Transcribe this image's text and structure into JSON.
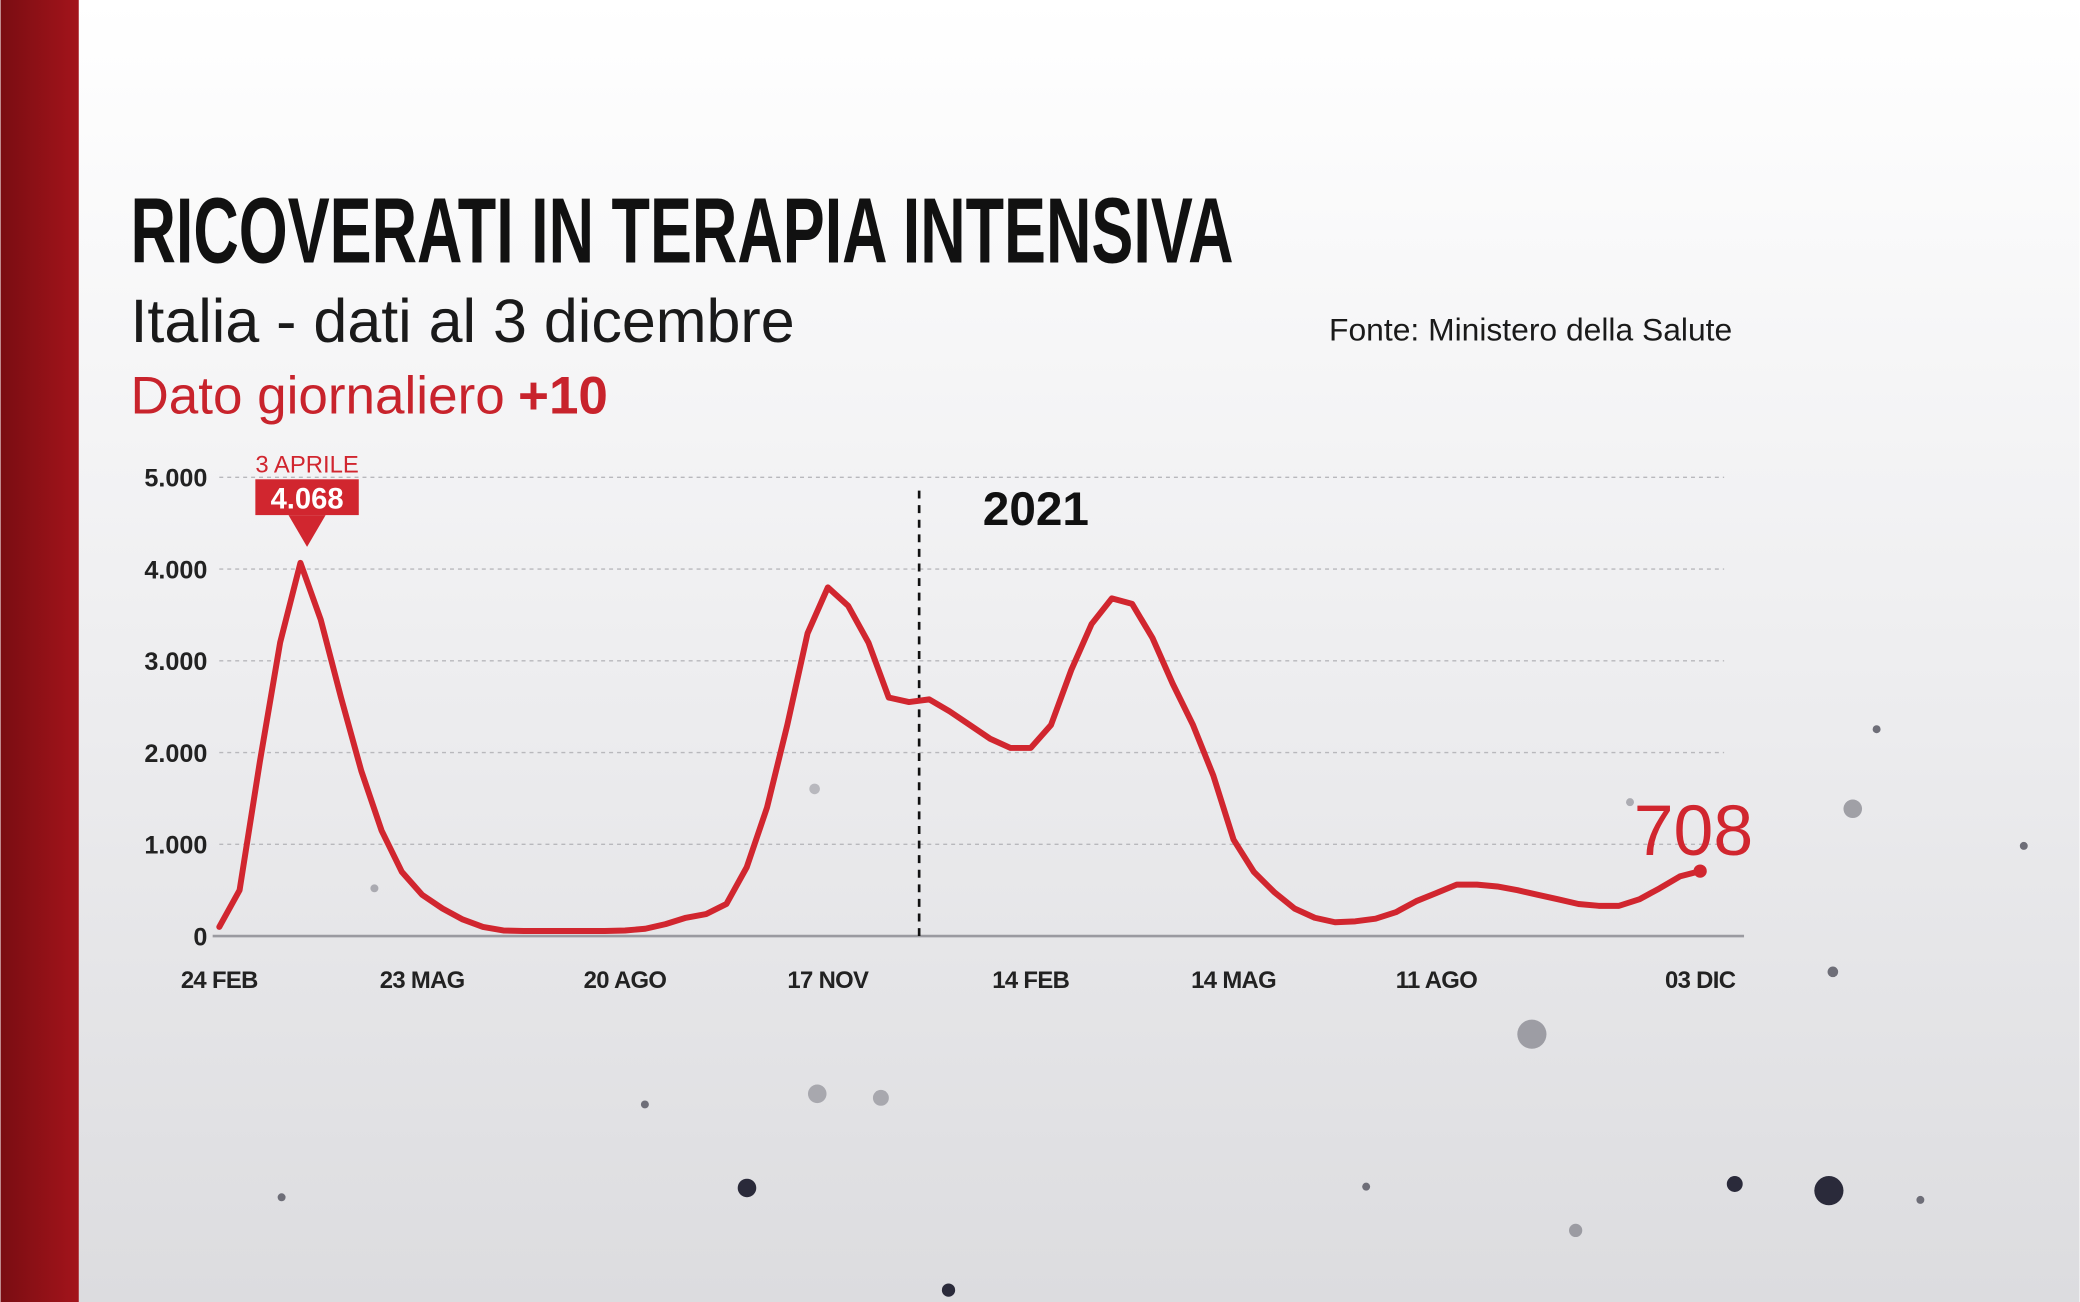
{
  "title": "RICOVERATI IN TERAPIA INTENSIVA",
  "subtitle": "Italia - dati al 3 dicembre",
  "source": "Fonte: Ministero della Salute",
  "daily_change": {
    "label": "Dato giornaliero",
    "value": "+10"
  },
  "chart_data": {
    "type": "line",
    "categories": [
      "24 FEB",
      null,
      null,
      null,
      null,
      null,
      null,
      null,
      null,
      null,
      "23 MAG",
      null,
      null,
      null,
      null,
      null,
      null,
      null,
      null,
      null,
      "20 AGO",
      null,
      null,
      null,
      null,
      null,
      null,
      null,
      null,
      null,
      "17 NOV",
      null,
      null,
      null,
      null,
      null,
      null,
      null,
      null,
      null,
      "14 FEB",
      null,
      null,
      null,
      null,
      null,
      null,
      null,
      null,
      null,
      "14 MAG",
      null,
      null,
      null,
      null,
      null,
      null,
      null,
      null,
      null,
      "11 AGO",
      null,
      null,
      null,
      null,
      null,
      null,
      null,
      null,
      null,
      null,
      null,
      null,
      "03 DIC"
    ],
    "series": [
      {
        "name": "Ricoverati in terapia intensiva",
        "color": "#d1262f",
        "values": [
          100,
          500,
          1900,
          3200,
          4068,
          3450,
          2600,
          1800,
          1150,
          700,
          450,
          300,
          180,
          100,
          60,
          55,
          55,
          55,
          55,
          55,
          60,
          80,
          130,
          200,
          240,
          350,
          750,
          1400,
          2300,
          3300,
          3800,
          3600,
          3200,
          2600,
          2550,
          2580,
          2450,
          2300,
          2150,
          2050,
          2050,
          2300,
          2900,
          3400,
          3680,
          3620,
          3250,
          2750,
          2300,
          1750,
          1050,
          700,
          480,
          300,
          200,
          150,
          160,
          190,
          260,
          380,
          470,
          560,
          560,
          540,
          500,
          450,
          400,
          350,
          330,
          330,
          400,
          520,
          650,
          708
        ],
        "value_labels": [
          null,
          null,
          null,
          null,
          "4.068",
          null,
          null,
          null,
          null,
          null,
          null,
          null,
          null,
          null,
          null,
          null,
          null,
          null,
          null,
          null,
          null,
          null,
          null,
          null,
          null,
          null,
          null,
          null,
          null,
          null,
          null,
          null,
          null,
          null,
          null,
          null,
          null,
          null,
          null,
          null,
          null,
          null,
          null,
          null,
          null,
          null,
          null,
          null,
          null,
          null,
          null,
          null,
          null,
          null,
          null,
          null,
          null,
          null,
          null,
          null,
          null,
          null,
          null,
          null,
          null,
          null,
          null,
          null,
          null,
          null,
          null,
          null,
          null,
          "708"
        ]
      }
    ],
    "peak_annotation": "3 APRILE",
    "year_divider": "2021",
    "ylim": [
      0,
      5000
    ],
    "yticks": [
      0,
      {
        "value": 1000,
        "label": "1.000"
      },
      {
        "value": 2000,
        "label": "2.000"
      },
      {
        "value": 3000,
        "label": "3.000"
      },
      {
        "value": 4000,
        "label": "4.000"
      },
      {
        "value": 5000,
        "label": "5.000"
      }
    ],
    "grid": true
  }
}
